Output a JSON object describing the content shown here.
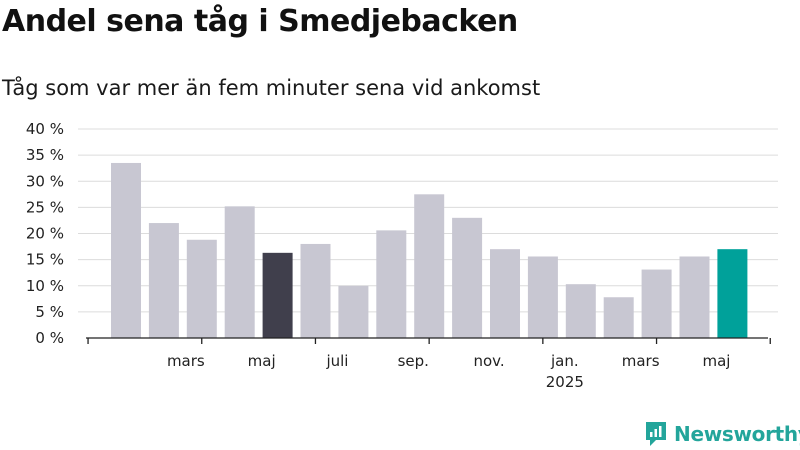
{
  "title": "Andel sena tåg i Smedjebacken",
  "subtitle": "Tåg som var mer än fem minuter sena vid ankomst",
  "brand": "Newsworthy",
  "colors": {
    "bar_default": "#c8c7d2",
    "bar_highlight_dark": "#403f4c",
    "bar_highlight_teal": "#00a19a",
    "grid": "#dcdcdc",
    "axis": "#222222",
    "brand": "#23a59b"
  },
  "chart_data": {
    "type": "bar",
    "title": "Andel sena tåg i Smedjebacken",
    "subtitle": "Tåg som var mer än fem minuter sena vid ankomst",
    "ylim": [
      0,
      40
    ],
    "yticks": [
      "0 %",
      "5 %",
      "10 %",
      "15 %",
      "20 %",
      "25 %",
      "30 %",
      "35 %",
      "40 %"
    ],
    "grid": true,
    "categories": [
      "2024-01",
      "2024-02",
      "2024-03",
      "2024-04",
      "2024-05",
      "2024-06",
      "2024-07",
      "2024-08",
      "2024-09",
      "2024-10",
      "2024-11",
      "2024-12",
      "2025-01",
      "2025-02",
      "2025-03",
      "2025-04",
      "2025-05",
      "2025-06"
    ],
    "values": [
      33.5,
      22,
      18.8,
      25.2,
      16.3,
      18,
      10,
      20.6,
      27.5,
      23,
      17,
      15.6,
      10.3,
      7.8,
      13.1,
      15.6,
      17,
      null
    ],
    "highlight": {
      "2024-05": "dark",
      "2025-05": "teal"
    },
    "xtick_labels": [
      {
        "month": "2024-03",
        "lines": [
          "mars"
        ]
      },
      {
        "month": "2024-05",
        "lines": [
          "maj"
        ]
      },
      {
        "month": "2024-07",
        "lines": [
          "juli"
        ]
      },
      {
        "month": "2024-09",
        "lines": [
          "sep."
        ]
      },
      {
        "month": "2024-11",
        "lines": [
          "nov."
        ]
      },
      {
        "month": "2025-01",
        "lines": [
          "jan.",
          "2025"
        ]
      },
      {
        "month": "2025-03",
        "lines": [
          "mars"
        ]
      },
      {
        "month": "2025-05",
        "lines": [
          "maj"
        ]
      }
    ]
  }
}
